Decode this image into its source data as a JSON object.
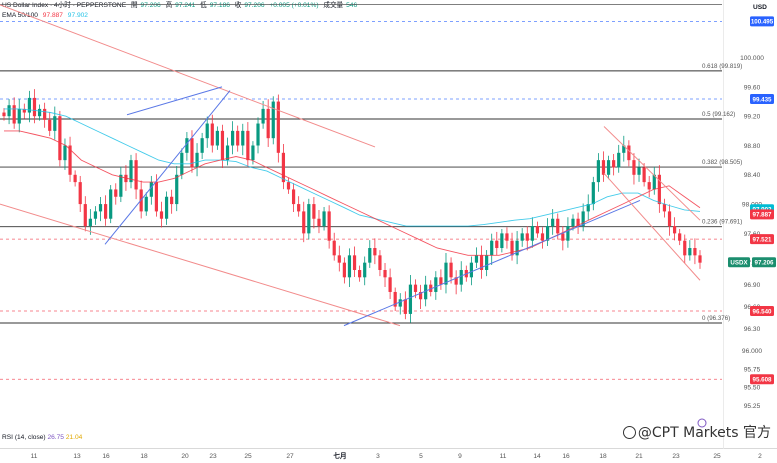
{
  "header": {
    "symbol": "US Dollar Index · 4小时 · PEPPERSTONE",
    "o_label": "開",
    "o": "97.206",
    "h_label": "高",
    "h": "97.241",
    "l_label": "低",
    "l": "97.186",
    "c_label": "收",
    "c": "97.206",
    "change": "+0.005 (+0.01%)",
    "vol_label": "成交量",
    "vol": "546",
    "ema_label": "EMA 50/100",
    "ema50": "97.887",
    "ema100": "97.902"
  },
  "currency": "USD",
  "rsi": {
    "label": "RSI (14, close)",
    "v1": "26.75",
    "v2": "21.04"
  },
  "watermark": "@CPT Markets 官方",
  "colors": {
    "up": "#089981",
    "down": "#f23645",
    "ema50": "#f23645",
    "ema100": "#22c2e6",
    "trend_red": "#f28b8b",
    "trend_blue": "#5a78e6",
    "level_gray": "#333333",
    "dashed_blue": "#2962ff"
  },
  "chart_data": {
    "type": "candlestick",
    "ylim": [
      95.0,
      100.9
    ],
    "y_ticks": [
      100.0,
      99.6,
      99.2,
      98.8,
      98.4,
      98.0,
      97.6,
      97.2,
      96.9,
      96.6,
      96.3,
      96.0,
      95.75,
      95.5,
      95.25
    ],
    "x_ticks": [
      "11",
      "13",
      "16",
      "18",
      "20",
      "23",
      "25",
      "27",
      "七月",
      "3",
      "5",
      "9",
      "11",
      "14",
      "16",
      "18",
      "21",
      "23",
      "25",
      "2"
    ],
    "fib_levels": [
      {
        "label": "0.618 (99.819)",
        "value": 99.819
      },
      {
        "label": "0.5 (99.162)",
        "value": 99.162
      },
      {
        "label": "0.382 (98.505)",
        "value": 98.505
      },
      {
        "label": "0.236 (97.691)",
        "value": 97.691
      },
      {
        "label": "0 (96.376)",
        "value": 96.376
      }
    ],
    "gray_lines": [
      100.9
    ],
    "dashed_lines": [
      {
        "value": 100.495,
        "color": "blue"
      },
      {
        "value": 99.435,
        "color": "blue"
      },
      {
        "value": 97.521,
        "color": "red"
      },
      {
        "value": 96.54,
        "color": "red"
      },
      {
        "value": 95.608,
        "color": "red"
      }
    ],
    "price_labels": [
      {
        "text": "100.495",
        "value": 100.495,
        "kind": "blue"
      },
      {
        "text": "99.435",
        "value": 99.435,
        "kind": "blue"
      },
      {
        "text": "97.902",
        "value": 97.902,
        "kind": "cyan"
      },
      {
        "text": "97.887",
        "value": 97.887,
        "kind": "red"
      },
      {
        "text": "97.521",
        "value": 97.521,
        "kind": "red"
      },
      {
        "text": "USDX",
        "value": 97.206,
        "kind": "sym"
      },
      {
        "text": "97.206",
        "value": 97.206,
        "kind": "last"
      },
      {
        "text": "96.540",
        "value": 96.54,
        "kind": "red"
      },
      {
        "text": "95.608",
        "value": 95.608,
        "kind": "red"
      }
    ],
    "closes": [
      99.2,
      99.35,
      99.1,
      99.3,
      99.25,
      99.45,
      99.2,
      99.3,
      99.15,
      99.0,
      99.2,
      98.6,
      98.8,
      98.4,
      98.3,
      98.0,
      97.7,
      97.8,
      97.9,
      98.0,
      97.8,
      98.2,
      98.1,
      98.4,
      98.3,
      98.6,
      98.2,
      97.9,
      98.1,
      98.3,
      97.9,
      97.8,
      98.1,
      98.0,
      98.4,
      98.7,
      98.9,
      98.5,
      98.7,
      98.9,
      99.1,
      98.8,
      99.0,
      98.6,
      98.8,
      99.0,
      98.8,
      99.0,
      98.6,
      98.8,
      99.1,
      99.3,
      98.9,
      99.4,
      98.7,
      98.3,
      98.2,
      98.0,
      97.9,
      97.6,
      98.0,
      97.8,
      97.7,
      97.9,
      97.5,
      97.3,
      97.2,
      97.0,
      97.3,
      97.1,
      97.0,
      97.2,
      97.4,
      97.3,
      97.1,
      97.0,
      96.8,
      96.6,
      96.7,
      96.5,
      96.9,
      96.8,
      96.7,
      96.9,
      96.8,
      97.0,
      96.9,
      97.2,
      97.0,
      96.9,
      97.1,
      97.0,
      97.2,
      97.3,
      97.1,
      97.3,
      97.5,
      97.4,
      97.6,
      97.5,
      97.3,
      97.5,
      97.6,
      97.5,
      97.7,
      97.6,
      97.5,
      97.7,
      97.8,
      97.6,
      97.5,
      97.7,
      97.8,
      97.7,
      97.9,
      98.0,
      98.3,
      98.6,
      98.4,
      98.6,
      98.5,
      98.7,
      98.8,
      98.6,
      98.4,
      98.5,
      98.3,
      98.2,
      98.4,
      98.0,
      97.9,
      97.7,
      97.6,
      97.5,
      97.3,
      97.4,
      97.3,
      97.2
    ],
    "ema50": [
      99.0,
      99.0,
      98.95,
      98.9,
      98.8,
      98.6,
      98.5,
      98.4,
      98.35,
      98.3,
      98.3,
      98.35,
      98.45,
      98.55,
      98.6,
      98.65,
      98.6,
      98.5,
      98.4,
      98.3,
      98.2,
      98.1,
      98.0,
      97.9,
      97.8,
      97.7,
      97.6,
      97.5,
      97.4,
      97.35,
      97.3,
      97.3,
      97.3,
      97.35,
      97.4,
      97.5,
      97.6,
      97.7,
      97.8,
      97.9,
      98.0,
      98.1,
      98.2,
      98.25,
      98.1,
      97.95
    ],
    "ema100": [
      99.3,
      99.3,
      99.28,
      99.25,
      99.2,
      99.1,
      99.0,
      98.9,
      98.8,
      98.7,
      98.6,
      98.55,
      98.55,
      98.6,
      98.6,
      98.58,
      98.5,
      98.45,
      98.35,
      98.25,
      98.15,
      98.05,
      97.95,
      97.85,
      97.8,
      97.75,
      97.7,
      97.7,
      97.7,
      97.7,
      97.7,
      97.72,
      97.75,
      97.78,
      97.8,
      97.85,
      97.9,
      97.95,
      98.0,
      98.1,
      98.15,
      98.15,
      98.05,
      97.98,
      97.92,
      97.9
    ]
  }
}
